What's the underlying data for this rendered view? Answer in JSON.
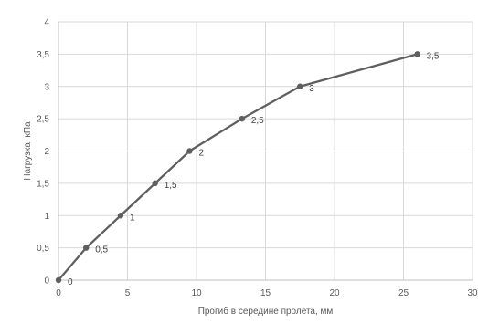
{
  "chart_data": {
    "type": "line",
    "title": "",
    "xlabel": "Прогиб в середине пролета, мм",
    "ylabel": "Нагрузка, кПа",
    "xlim": [
      0,
      30
    ],
    "ylim": [
      0,
      4
    ],
    "x_ticks": [
      0,
      5,
      10,
      15,
      20,
      25,
      30
    ],
    "y_ticks": [
      0,
      0.5,
      1,
      1.5,
      2,
      2.5,
      3,
      3.5,
      4
    ],
    "x_tick_labels": [
      "0",
      "5",
      "10",
      "15",
      "20",
      "25",
      "30"
    ],
    "y_tick_labels": [
      "0",
      "0,5",
      "1",
      "1,5",
      "2",
      "2,5",
      "3",
      "3,5",
      "4"
    ],
    "grid": true,
    "legend": "none",
    "series": [
      {
        "color": "#5f5f5f",
        "x": [
          0,
          2,
          4.5,
          7,
          9.5,
          13.3,
          17.5,
          26
        ],
        "y": [
          0,
          0.5,
          1,
          1.5,
          2,
          2.5,
          3,
          3.5
        ],
        "data_labels": [
          "0",
          "0,5",
          "1",
          "1,5",
          "2",
          "2,5",
          "3",
          "3,5"
        ]
      }
    ],
    "colors": {
      "grid": "#d9d9d9",
      "axis": "#bfbfbf",
      "line": "#5f5f5f",
      "marker": "#5f5f5f"
    }
  }
}
